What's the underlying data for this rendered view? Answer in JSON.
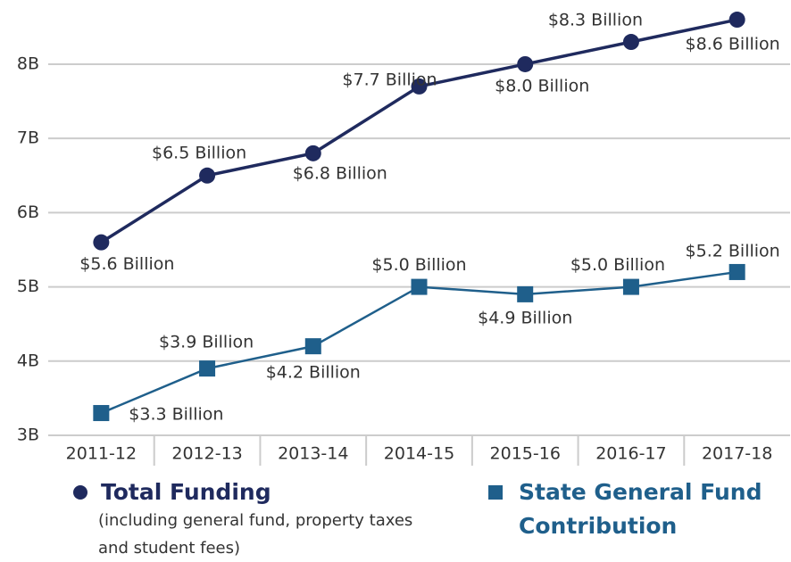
{
  "chart_data": {
    "type": "line",
    "categories": [
      "2011-12",
      "2012-13",
      "2013-14",
      "2014-15",
      "2015-16",
      "2016-17",
      "2017-18"
    ],
    "series": [
      {
        "name": "Total Funding",
        "color": "#1f2a5e",
        "marker": "circle",
        "values": [
          5.6,
          6.5,
          6.8,
          7.7,
          8.0,
          8.3,
          8.6
        ],
        "value_labels": [
          "$5.6 Billion",
          "$6.5 Billion",
          "$6.8 Billion",
          "$7.7 Billion",
          "$8.0 Billion",
          "$8.3 Billion",
          "$8.6 Billion"
        ]
      },
      {
        "name": "State General Fund Contribution",
        "color": "#1f5f8b",
        "marker": "square",
        "values": [
          3.3,
          3.9,
          4.2,
          5.0,
          4.9,
          5.0,
          5.2
        ],
        "value_labels": [
          "$3.3 Billion",
          "$3.9 Billion",
          "$4.2 Billion",
          "$5.0 Billion",
          "$4.9 Billion",
          "$5.0 Billion",
          "$5.2 Billion"
        ]
      }
    ],
    "legend_note": "(including general fund, property taxes and student fees)",
    "ylim": [
      3,
      8.8
    ],
    "yticks": [
      {
        "value": 3,
        "label": "3B"
      },
      {
        "value": 4,
        "label": "4B"
      },
      {
        "value": 5,
        "label": "5B"
      },
      {
        "value": 6,
        "label": "6B"
      },
      {
        "value": 7,
        "label": "7B"
      },
      {
        "value": 8,
        "label": "8B"
      }
    ],
    "grid": true
  }
}
